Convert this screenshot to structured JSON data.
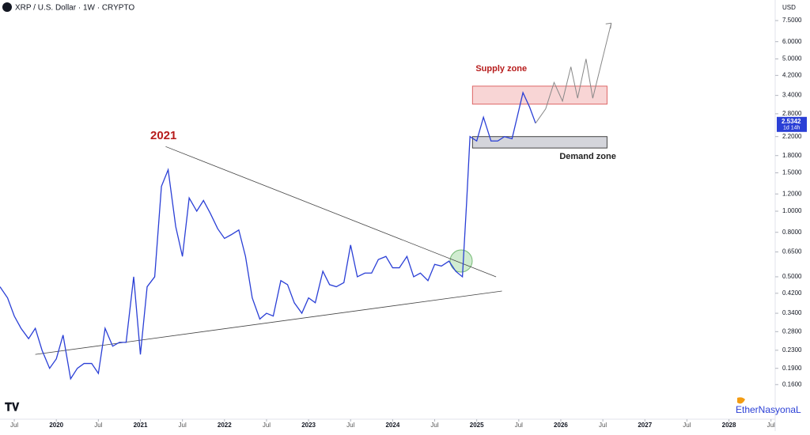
{
  "chart_data": {
    "type": "line",
    "title": "XRP / U.S. Dollar · 1W · CRYPTO",
    "currency": "USD",
    "last_price": 2.5342,
    "countdown": "1d 14h",
    "log_scale": true,
    "grid": false,
    "annotations": [
      "2021",
      "EtherNasyonaL"
    ],
    "series": [
      {
        "color": "#2a3fd6",
        "x": [
          2019.33,
          2019.42,
          2019.5,
          2019.58,
          2019.67,
          2019.75,
          2019.83,
          2019.92,
          2020.0,
          2020.08,
          2020.17,
          2020.25,
          2020.33,
          2020.42,
          2020.5,
          2020.58,
          2020.67,
          2020.75,
          2020.83,
          2020.92,
          2021.0,
          2021.08,
          2021.17,
          2021.25,
          2021.33,
          2021.42,
          2021.5,
          2021.58,
          2021.67,
          2021.75,
          2021.83,
          2021.92,
          2022.0,
          2022.08,
          2022.17,
          2022.25,
          2022.33,
          2022.42,
          2022.5,
          2022.58,
          2022.67,
          2022.75,
          2022.83,
          2022.92,
          2023.0,
          2023.08,
          2023.17,
          2023.25,
          2023.33,
          2023.42,
          2023.5,
          2023.58,
          2023.67,
          2023.75,
          2023.83,
          2023.92,
          2024.0,
          2024.08,
          2024.17,
          2024.25,
          2024.33,
          2024.42,
          2024.5,
          2024.58,
          2024.67,
          2024.75,
          2024.83,
          2024.88,
          2024.92,
          2025.0,
          2025.08,
          2025.17,
          2025.25,
          2025.33,
          2025.42,
          2025.5,
          2025.55,
          2025.63,
          2025.7
        ],
        "values": [
          0.45,
          0.4,
          0.33,
          0.29,
          0.26,
          0.29,
          0.23,
          0.19,
          0.21,
          0.27,
          0.17,
          0.19,
          0.2,
          0.2,
          0.18,
          0.29,
          0.24,
          0.25,
          0.25,
          0.5,
          0.22,
          0.45,
          0.5,
          1.3,
          1.55,
          0.85,
          0.62,
          1.15,
          1.0,
          1.12,
          0.98,
          0.83,
          0.75,
          0.78,
          0.82,
          0.62,
          0.4,
          0.32,
          0.34,
          0.33,
          0.48,
          0.46,
          0.38,
          0.34,
          0.4,
          0.38,
          0.53,
          0.46,
          0.45,
          0.47,
          0.7,
          0.5,
          0.52,
          0.52,
          0.6,
          0.62,
          0.55,
          0.55,
          0.62,
          0.5,
          0.52,
          0.48,
          0.57,
          0.56,
          0.59,
          0.53,
          0.5,
          1.1,
          2.2,
          2.1,
          2.7,
          2.1,
          2.1,
          2.2,
          2.15,
          2.9,
          3.5,
          3.0,
          2.5342
        ]
      },
      {
        "color": "#888888",
        "x": [
          2025.7,
          2025.82,
          2025.92,
          2026.02,
          2026.12,
          2026.2,
          2026.3,
          2026.38,
          2026.6
        ],
        "values": [
          2.5342,
          2.95,
          3.9,
          3.2,
          4.6,
          3.3,
          5.0,
          3.3,
          7.3
        ]
      }
    ],
    "trendlines": [
      {
        "x": [
          2021.3,
          2025.23
        ],
        "values": [
          1.98,
          0.5
        ]
      },
      {
        "x": [
          2019.75,
          2025.3
        ],
        "values": [
          0.22,
          0.43
        ]
      }
    ],
    "zones": [
      {
        "label": "Supply zone",
        "x": [
          2024.95,
          2026.55
        ],
        "range": [
          3.1,
          3.75
        ],
        "color": "#f6caca"
      },
      {
        "label": "Demand zone",
        "x": [
          2024.95,
          2026.55
        ],
        "range": [
          1.95,
          2.2
        ],
        "color": "#c9cad2"
      }
    ],
    "xlim": [
      2019.33,
      2028.55
    ],
    "xticks": [
      {
        "value": 2019.5,
        "label": "Jul"
      },
      {
        "value": 2020,
        "label": "2020"
      },
      {
        "value": 2020.5,
        "label": "Jul"
      },
      {
        "value": 2021,
        "label": "2021"
      },
      {
        "value": 2021.5,
        "label": "Jul"
      },
      {
        "value": 2022,
        "label": "2022"
      },
      {
        "value": 2022.5,
        "label": "Jul"
      },
      {
        "value": 2023,
        "label": "2023"
      },
      {
        "value": 2023.5,
        "label": "Jul"
      },
      {
        "value": 2024,
        "label": "2024"
      },
      {
        "value": 2024.5,
        "label": "Jul"
      },
      {
        "value": 2025,
        "label": "2025"
      },
      {
        "value": 2025.5,
        "label": "Jul"
      },
      {
        "value": 2026,
        "label": "2026"
      },
      {
        "value": 2026.5,
        "label": "Jul"
      },
      {
        "value": 2027,
        "label": "2027"
      },
      {
        "value": 2027.5,
        "label": "Jul"
      },
      {
        "value": 2028,
        "label": "2028"
      },
      {
        "value": 2028.5,
        "label": "Jul"
      }
    ],
    "ylim": [
      0.111,
      9.32
    ],
    "yticks": [
      {
        "value": 7.5,
        "label": "7.5000"
      },
      {
        "value": 6,
        "label": "6.0000"
      },
      {
        "value": 5,
        "label": "5.0000"
      },
      {
        "value": 4.2,
        "label": "4.2000"
      },
      {
        "value": 3.4,
        "label": "3.4000"
      },
      {
        "value": 2.8,
        "label": "2.8000"
      },
      {
        "value": 2.2,
        "label": "2.2000"
      },
      {
        "value": 1.8,
        "label": "1.8000"
      },
      {
        "value": 1.5,
        "label": "1.5000"
      },
      {
        "value": 1.2,
        "label": "1.2000"
      },
      {
        "value": 1,
        "label": "1.0000"
      },
      {
        "value": 0.8,
        "label": "0.8000"
      },
      {
        "value": 0.65,
        "label": "0.6500"
      },
      {
        "value": 0.5,
        "label": "0.5000"
      },
      {
        "value": 0.42,
        "label": "0.4200"
      },
      {
        "value": 0.34,
        "label": "0.3400"
      },
      {
        "value": 0.28,
        "label": "0.2800"
      },
      {
        "value": 0.23,
        "label": "0.2300"
      },
      {
        "value": 0.19,
        "label": "0.1900"
      },
      {
        "value": 0.16,
        "label": "0.1600"
      }
    ]
  }
}
